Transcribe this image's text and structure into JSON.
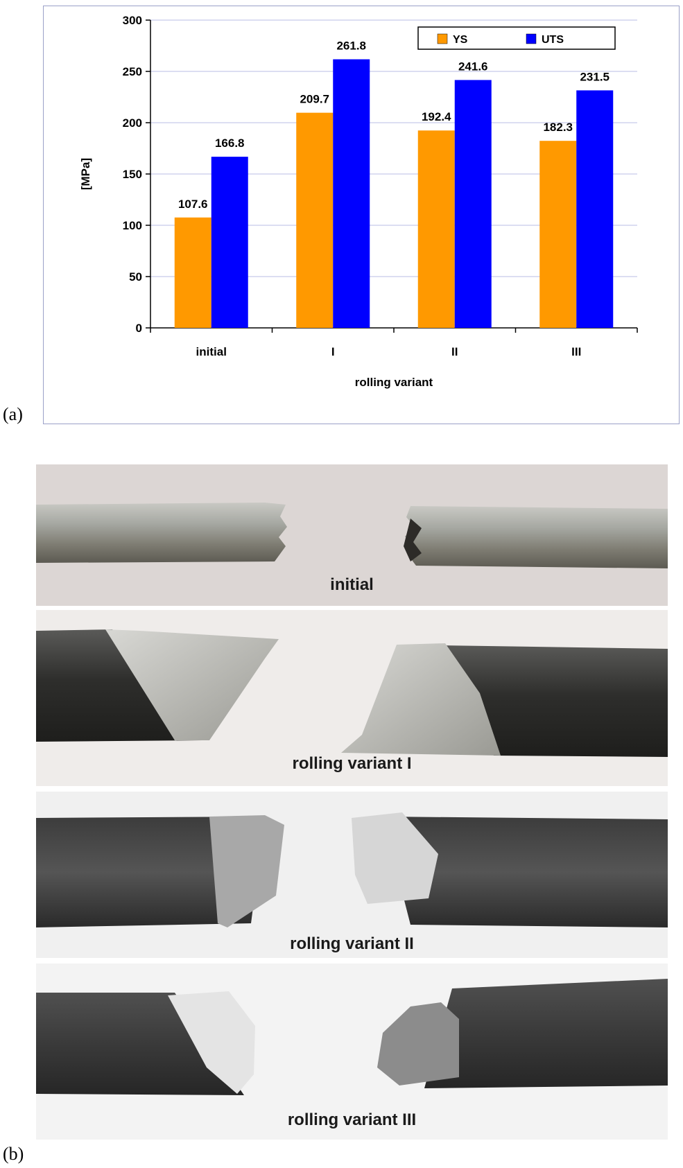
{
  "panel_a_label": "(a)",
  "panel_b_label": "(b)",
  "chart_data": {
    "type": "bar",
    "categories": [
      "initial",
      "I",
      "II",
      "III"
    ],
    "series": [
      {
        "name": "YS",
        "values": [
          107.6,
          209.7,
          192.4,
          182.3
        ],
        "color": "#ff9900",
        "labels": [
          "107.6",
          "209.7",
          "192.4",
          "182.3"
        ]
      },
      {
        "name": "UTS",
        "values": [
          166.8,
          261.8,
          241.6,
          231.5
        ],
        "color": "#0000ff",
        "labels": [
          "166.8",
          "261.8",
          "241.6",
          "231.5"
        ]
      }
    ],
    "xlabel": "rolling variant",
    "ylabel": "[MPa]",
    "ylim": [
      0,
      300
    ],
    "yticks": [
      "0",
      "50",
      "100",
      "150",
      "200",
      "250",
      "300"
    ],
    "grid": true,
    "legend_position": "top-right"
  },
  "photos": [
    {
      "caption": "initial"
    },
    {
      "caption": "rolling variant I"
    },
    {
      "caption": "rolling variant II"
    },
    {
      "caption": "rolling variant III"
    }
  ]
}
